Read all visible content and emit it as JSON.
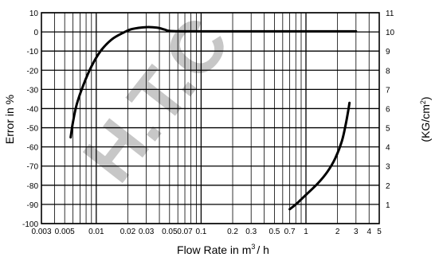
{
  "chart_data": {
    "type": "line",
    "title": "",
    "xlabel_main": "Flow Rate in m",
    "xlabel_sup": "3",
    "xlabel_tail": "/ h",
    "ylabel_left": "Error in %",
    "ylabel_right_main": "(KG/cm",
    "ylabel_right_sup": "2",
    "ylabel_right_tail": ")",
    "x_scale": "log",
    "xlim": [
      0.003,
      5
    ],
    "ylim_left": [
      -100,
      10
    ],
    "ylim_right": [
      0,
      11
    ],
    "grid": true,
    "x_tick_labels": [
      "0.003",
      "0.005",
      "0.01",
      "0.02",
      "0.03",
      "0.05",
      "0.07",
      "0.1",
      "0.2",
      "0.3",
      "0.5",
      "0.7",
      "1",
      "2",
      "3",
      "4",
      "5"
    ],
    "x_tick_values": [
      0.003,
      0.005,
      0.01,
      0.02,
      0.03,
      0.05,
      0.07,
      0.1,
      0.2,
      0.3,
      0.5,
      0.7,
      1,
      2,
      3,
      4,
      5
    ],
    "y_left_ticks": [
      10,
      0,
      -10,
      -20,
      -30,
      -40,
      -50,
      -60,
      -70,
      -80,
      -90,
      -100
    ],
    "y_right_ticks": [
      11,
      10,
      9,
      8,
      7,
      6,
      5,
      4,
      3,
      2,
      1
    ],
    "series": [
      {
        "axis": "left",
        "points": [
          [
            0.0057,
            -55
          ],
          [
            0.006,
            -47
          ],
          [
            0.0065,
            -38
          ],
          [
            0.0075,
            -28
          ],
          [
            0.009,
            -18
          ],
          [
            0.011,
            -10
          ],
          [
            0.014,
            -4
          ],
          [
            0.018,
            -0.5
          ],
          [
            0.022,
            1.5
          ],
          [
            0.03,
            2.5
          ],
          [
            0.038,
            2.2
          ],
          [
            0.045,
            1.2
          ],
          [
            0.05,
            0.5
          ],
          [
            0.07,
            0.3
          ],
          [
            0.1,
            0.3
          ],
          [
            0.5,
            0.3
          ],
          [
            1,
            0.3
          ],
          [
            3,
            0.3
          ]
        ]
      },
      {
        "axis": "right",
        "points": [
          [
            0.7,
            0.75
          ],
          [
            0.8,
            1
          ],
          [
            1,
            1.5
          ],
          [
            1.3,
            2.1
          ],
          [
            1.6,
            2.7
          ],
          [
            1.9,
            3.4
          ],
          [
            2.2,
            4.3
          ],
          [
            2.4,
            5.2
          ],
          [
            2.55,
            6.0
          ],
          [
            2.6,
            6.3
          ]
        ]
      }
    ]
  },
  "watermark": "H.T.C"
}
